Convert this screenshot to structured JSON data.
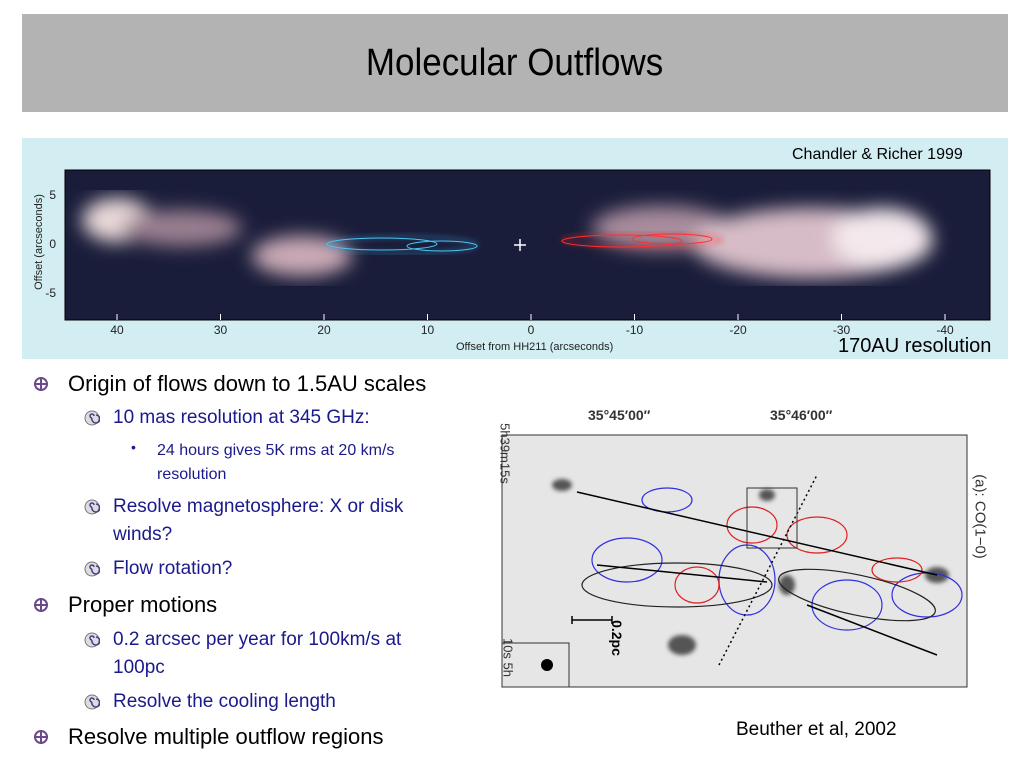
{
  "header": {
    "title": "Molecular Outflows"
  },
  "figure_top": {
    "credit": "Chandler & Richer 1999",
    "caption": "170AU resolution",
    "y_label": "Offset (arcseconds)",
    "x_label": "Offset from HH211 (arcseconds)",
    "x_ticks": [
      "40",
      "30",
      "20",
      "10",
      "0",
      "-10",
      "-20",
      "-30",
      "-40"
    ],
    "y_ticks": [
      "5",
      "0",
      "-5"
    ]
  },
  "bullets": [
    {
      "text": "Origin of flows down to 1.5AU scales",
      "children": [
        {
          "text": "10 mas resolution at 345 GHz:",
          "children": [
            {
              "text": "24 hours gives 5K rms at 20 km/s resolution"
            }
          ]
        },
        {
          "text": "Resolve magnetosphere: X or disk winds?"
        },
        {
          "text": "Flow rotation?"
        }
      ]
    },
    {
      "text": "Proper motions",
      "children": [
        {
          "text": "0.2 arcsec per year for 100km/s at 100pc"
        },
        {
          "text": "Resolve the cooling length"
        }
      ]
    },
    {
      "text": "Resolve multiple outflow regions"
    }
  ],
  "figure_bottom": {
    "ra_ticks": [
      "35°45′00″",
      "35°46′00″"
    ],
    "dec_top": "5h39m15s",
    "dec_bottom": "10s 5h",
    "panel_label": "(a): CO(1−0)",
    "scale_bar": "0.2pc",
    "credit": "Beuther et al, 2002"
  }
}
